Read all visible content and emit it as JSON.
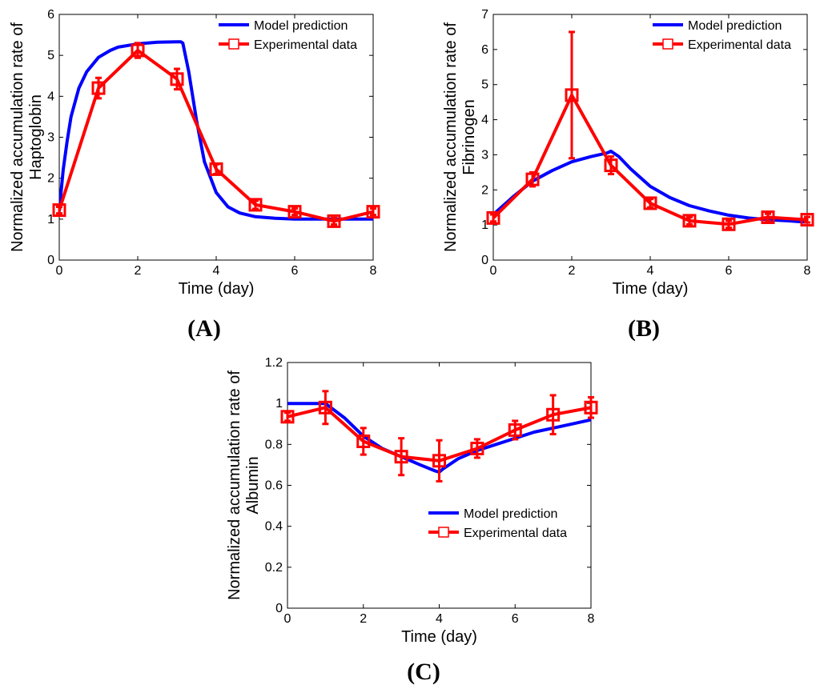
{
  "chart_data": [
    {
      "type": "line",
      "panel": "A",
      "caption": "(A)",
      "caption_letter": "A",
      "xlabel": "Time (day)",
      "ylabel_lines": [
        "Normalized accumulation rate of",
        "Haptoglobin"
      ],
      "xlim": [
        0,
        8
      ],
      "ylim": [
        0,
        6
      ],
      "xticks": [
        0,
        2,
        4,
        6,
        8
      ],
      "yticks": [
        0,
        1,
        2,
        3,
        4,
        5,
        6
      ],
      "legend": {
        "position": "top-right",
        "entries": [
          "Model prediction",
          "Experimental data"
        ]
      },
      "series": [
        {
          "name": "Model prediction",
          "color": "#0000ff",
          "x": [
            0,
            0.1,
            0.2,
            0.3,
            0.5,
            0.7,
            1.0,
            1.3,
            1.5,
            2.0,
            2.5,
            3.0,
            3.1,
            3.15,
            3.3,
            3.5,
            3.7,
            4.0,
            4.3,
            4.6,
            5.0,
            5.5,
            6.0,
            7.0,
            8.0
          ],
          "y": [
            1.2,
            2.2,
            2.9,
            3.5,
            4.2,
            4.6,
            4.95,
            5.12,
            5.2,
            5.28,
            5.32,
            5.33,
            5.33,
            5.3,
            4.6,
            3.4,
            2.4,
            1.65,
            1.3,
            1.15,
            1.06,
            1.02,
            1.0,
            1.0,
            1.0
          ]
        },
        {
          "name": "Experimental data",
          "color": "#ff0000",
          "marker": "square",
          "x": [
            0,
            1,
            2,
            3,
            4,
            5,
            6,
            7,
            8
          ],
          "y": [
            1.22,
            4.2,
            5.12,
            4.42,
            2.22,
            1.35,
            1.18,
            0.95,
            1.18
          ],
          "error": [
            0.08,
            0.25,
            0.18,
            0.25,
            0.12,
            0.1,
            0.08,
            0.08,
            0.08
          ]
        }
      ]
    },
    {
      "type": "line",
      "panel": "B",
      "caption": "(B)",
      "caption_letter": "B",
      "xlabel": "Time (day)",
      "ylabel_lines": [
        "Normalized accumulation rate of",
        "Fibrinogen"
      ],
      "xlim": [
        0,
        8
      ],
      "ylim": [
        0,
        7
      ],
      "xticks": [
        0,
        2,
        4,
        6,
        8
      ],
      "yticks": [
        0,
        1,
        2,
        3,
        4,
        5,
        6,
        7
      ],
      "legend": {
        "position": "top-right",
        "entries": [
          "Model prediction",
          "Experimental data"
        ]
      },
      "series": [
        {
          "name": "Model prediction",
          "color": "#0000ff",
          "x": [
            0,
            0.25,
            0.5,
            1.0,
            1.5,
            2.0,
            2.5,
            2.9,
            3.0,
            3.2,
            3.5,
            4.0,
            4.5,
            5.0,
            5.5,
            6.0,
            6.5,
            7.0,
            7.5,
            8.0
          ],
          "y": [
            1.3,
            1.55,
            1.8,
            2.25,
            2.55,
            2.8,
            2.95,
            3.05,
            3.1,
            2.95,
            2.6,
            2.1,
            1.78,
            1.55,
            1.4,
            1.28,
            1.2,
            1.15,
            1.12,
            1.08
          ]
        },
        {
          "name": "Experimental data",
          "color": "#ff0000",
          "marker": "square",
          "x": [
            0,
            1,
            2,
            3,
            4,
            5,
            6,
            7,
            8
          ],
          "y": [
            1.2,
            2.3,
            4.7,
            2.7,
            1.62,
            1.12,
            1.02,
            1.22,
            1.15
          ],
          "error": [
            0.1,
            0.2,
            1.8,
            0.25,
            0.12,
            0.1,
            0.1,
            0.1,
            0.08
          ]
        }
      ]
    },
    {
      "type": "line",
      "panel": "C",
      "caption": "(C)",
      "caption_letter": "C",
      "xlabel": "Time (day)",
      "ylabel_lines": [
        "Normalized accumulation rate of",
        "Albumin"
      ],
      "xlim": [
        0,
        8
      ],
      "ylim": [
        0,
        1.2
      ],
      "xticks": [
        0,
        2,
        4,
        6,
        8
      ],
      "yticks": [
        0,
        0.2,
        0.4,
        0.6,
        0.8,
        1,
        1.2
      ],
      "legend": {
        "position": "bottom-right",
        "entries": [
          "Model prediction",
          "Experimental data"
        ]
      },
      "series": [
        {
          "name": "Model prediction",
          "color": "#0000ff",
          "x": [
            0,
            0.5,
            1.0,
            1.5,
            2.0,
            2.5,
            3.0,
            3.5,
            3.9,
            4.0,
            4.1,
            4.5,
            5.0,
            5.5,
            6.0,
            6.5,
            7.0,
            7.5,
            8.0
          ],
          "y": [
            1.0,
            1.0,
            1.0,
            0.93,
            0.84,
            0.78,
            0.74,
            0.7,
            0.67,
            0.665,
            0.68,
            0.73,
            0.77,
            0.8,
            0.83,
            0.86,
            0.88,
            0.9,
            0.92
          ]
        },
        {
          "name": "Experimental data",
          "color": "#ff0000",
          "marker": "square",
          "x": [
            0,
            1,
            2,
            3,
            4,
            5,
            6,
            7,
            8
          ],
          "y": [
            0.935,
            0.98,
            0.815,
            0.74,
            0.72,
            0.78,
            0.87,
            0.945,
            0.98
          ],
          "error": [
            0.02,
            0.08,
            0.065,
            0.09,
            0.1,
            0.045,
            0.045,
            0.095,
            0.05
          ]
        }
      ]
    }
  ]
}
